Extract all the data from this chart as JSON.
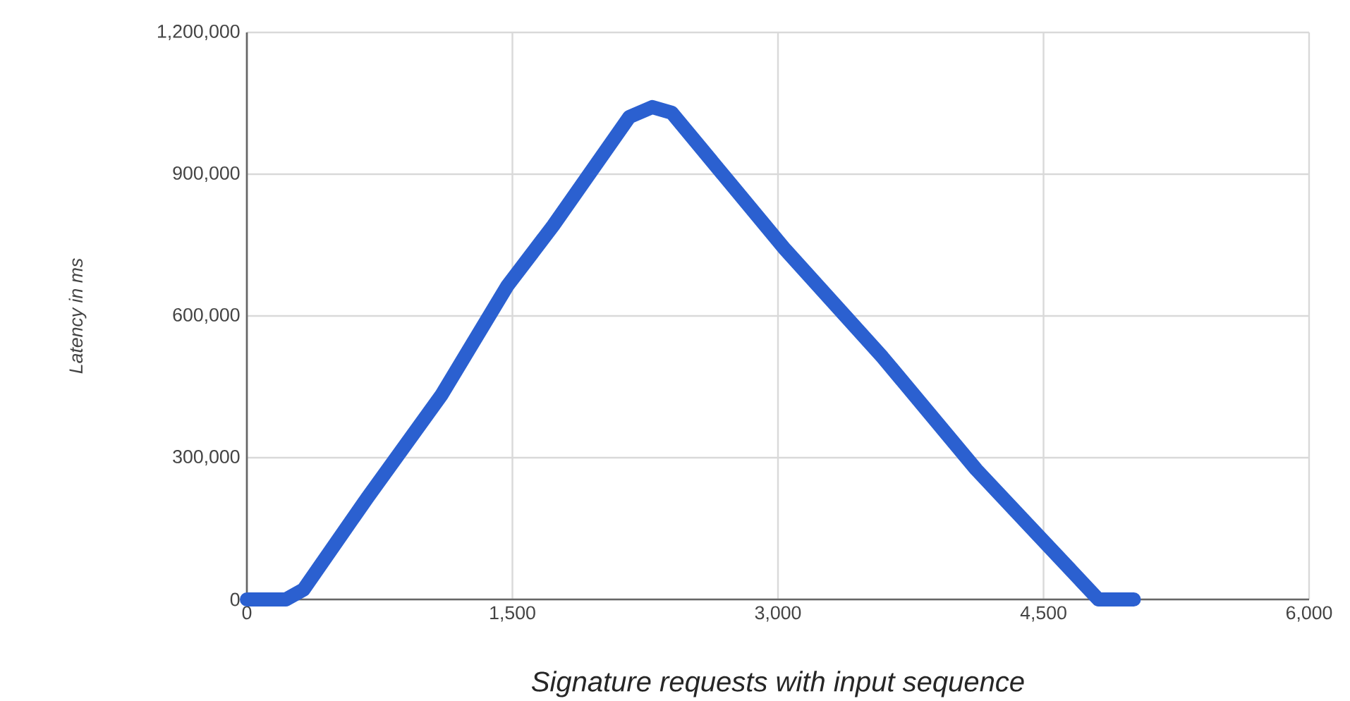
{
  "chart_data": {
    "type": "line",
    "xlabel": "Signature requests with input sequence",
    "ylabel": "Latency in ms",
    "xlim": [
      0,
      6000
    ],
    "xticks": [
      {
        "value": 0,
        "label": "0"
      },
      {
        "value": 1500,
        "label": "1,500"
      },
      {
        "value": 3000,
        "label": "3,000"
      },
      {
        "value": 4500,
        "label": "4,500"
      },
      {
        "value": 6000,
        "label": "6,000"
      }
    ],
    "ylim": [
      0,
      1200000
    ],
    "yticks": [
      {
        "value": 0,
        "label": "0"
      },
      {
        "value": 300000,
        "label": "300,000"
      },
      {
        "value": 600000,
        "label": "600,000"
      },
      {
        "value": 900000,
        "label": "900,000"
      },
      {
        "value": 1200000,
        "label": "1,200,000"
      }
    ],
    "grid": true,
    "marker": "none",
    "line_style": "solid",
    "series": [
      {
        "color": "#2b60d0",
        "x": [
          0,
          220,
          320,
          680,
          1100,
          1470,
          1730,
          2160,
          2290,
          2400,
          3040,
          3590,
          4120,
          4810,
          5010
        ],
        "values": [
          0,
          0,
          21000,
          215000,
          433000,
          663000,
          791000,
          1021000,
          1042000,
          1030000,
          741000,
          513000,
          275000,
          0,
          0
        ]
      }
    ]
  }
}
